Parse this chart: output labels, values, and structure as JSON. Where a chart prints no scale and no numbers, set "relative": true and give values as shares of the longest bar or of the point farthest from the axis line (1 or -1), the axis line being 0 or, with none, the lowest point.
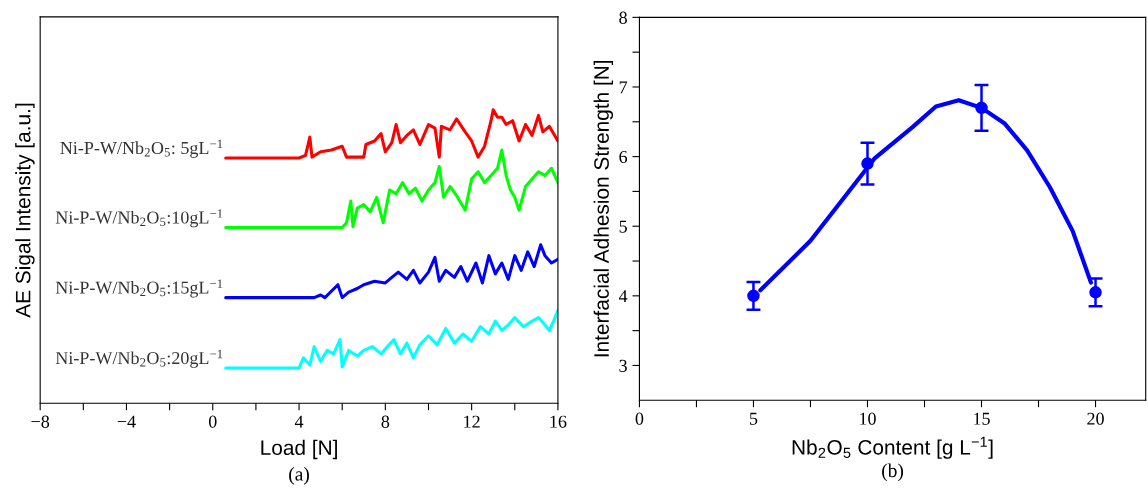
{
  "chart_data": [
    {
      "type": "line",
      "relative": true,
      "xlabel": "Load [N]",
      "ylabel": "AE Sigal Intensity [a.u.]",
      "annotations": [
        "(a)"
      ],
      "tick_labels": "x",
      "grid": false,
      "legend": false,
      "xlim": [
        -8,
        16
      ],
      "xticks": [
        {
          "value": -8,
          "label": "−8"
        },
        {
          "value": -6,
          "label": null
        },
        {
          "value": -4,
          "label": "−4"
        },
        {
          "value": -2,
          "label": null
        },
        0,
        {
          "value": 2,
          "label": null
        },
        4,
        {
          "value": 6,
          "label": null
        },
        8,
        {
          "value": 10,
          "label": null
        },
        12,
        {
          "value": 14,
          "label": null
        },
        16
      ],
      "series": [
        {
          "name": "Ni-P-W/Nb$_{2}$O$_{5}$: 5gL$^{−1}$",
          "color": "#ff0000",
          "x": [
            0.6,
            4.0,
            4.3,
            4.5,
            4.6,
            5.0,
            5.5,
            6.0,
            6.2,
            7.0,
            7.1,
            7.5,
            7.8,
            8.0,
            8.3,
            8.5,
            8.7,
            9.0,
            9.3,
            9.6,
            10.0,
            10.3,
            10.5,
            10.6,
            11.0,
            11.3,
            11.7,
            12.0,
            12.3,
            12.6,
            12.9,
            13.0,
            13.2,
            13.4,
            13.6,
            13.9,
            14.2,
            14.5,
            14.8,
            15.1,
            15.3,
            15.6,
            16.0
          ],
          "values": [
            0.836,
            0.836,
            0.845,
            0.907,
            0.839,
            0.857,
            0.863,
            0.876,
            0.839,
            0.839,
            0.882,
            0.894,
            0.919,
            0.857,
            0.888,
            0.95,
            0.888,
            0.913,
            0.932,
            0.882,
            0.95,
            0.938,
            0.839,
            0.944,
            0.932,
            0.969,
            0.925,
            0.894,
            0.839,
            0.876,
            0.963,
            1.0,
            0.975,
            0.975,
            0.95,
            0.963,
            0.894,
            0.95,
            0.913,
            0.981,
            0.925,
            0.944,
            0.894
          ]
        },
        {
          "name": "Ni-P-W/Nb$_{2}$O$_{5}$:10gL$^{−1}$",
          "color": "#00ff00",
          "x": [
            0.6,
            6.0,
            6.2,
            6.4,
            6.5,
            6.7,
            7.0,
            7.3,
            7.6,
            7.9,
            8.2,
            8.5,
            8.8,
            9.1,
            9.4,
            9.7,
            10.0,
            10.3,
            10.5,
            10.7,
            11.0,
            11.3,
            11.7,
            12.0,
            12.3,
            12.6,
            12.9,
            13.2,
            13.4,
            13.6,
            13.8,
            14.0,
            14.2,
            14.5,
            14.8,
            15.1,
            15.4,
            15.7,
            16.0
          ],
          "values": [
            0.599,
            0.599,
            0.615,
            0.689,
            0.602,
            0.665,
            0.677,
            0.652,
            0.702,
            0.615,
            0.727,
            0.714,
            0.752,
            0.714,
            0.733,
            0.689,
            0.727,
            0.752,
            0.807,
            0.702,
            0.739,
            0.708,
            0.658,
            0.764,
            0.789,
            0.752,
            0.776,
            0.801,
            0.863,
            0.776,
            0.727,
            0.702,
            0.658,
            0.739,
            0.764,
            0.789,
            0.776,
            0.801,
            0.752
          ]
        },
        {
          "name": "Ni-P-W/Nb$_{2}$O$_{5}$:15gL$^{−1}$",
          "color": "#0000ff",
          "x": [
            0.6,
            4.7,
            5.0,
            5.2,
            5.8,
            6.0,
            6.3,
            6.7,
            7.0,
            7.5,
            8.0,
            8.3,
            8.6,
            9.0,
            9.3,
            9.6,
            10.0,
            10.3,
            10.5,
            10.8,
            11.2,
            11.5,
            11.8,
            12.2,
            12.5,
            12.8,
            13.1,
            13.4,
            13.7,
            14.0,
            14.3,
            14.6,
            14.9,
            15.2,
            15.4,
            15.7,
            16.0
          ],
          "values": [
            0.36,
            0.36,
            0.369,
            0.36,
            0.404,
            0.36,
            0.379,
            0.391,
            0.404,
            0.416,
            0.41,
            0.429,
            0.447,
            0.422,
            0.453,
            0.41,
            0.447,
            0.497,
            0.416,
            0.453,
            0.429,
            0.466,
            0.416,
            0.478,
            0.41,
            0.503,
            0.441,
            0.478,
            0.422,
            0.503,
            0.453,
            0.516,
            0.466,
            0.54,
            0.503,
            0.478,
            0.491
          ]
        },
        {
          "name": "Ni-P-W/Nb$_{2}$O$_{5}$:20gL$^{−1}$",
          "color": "#00ffff",
          "x": [
            0.6,
            4.0,
            4.2,
            4.5,
            4.7,
            5.0,
            5.3,
            5.6,
            5.9,
            6.0,
            6.3,
            6.7,
            7.0,
            7.4,
            7.8,
            8.1,
            8.4,
            8.7,
            9.0,
            9.3,
            9.6,
            10.0,
            10.4,
            10.8,
            11.2,
            11.6,
            12.0,
            12.4,
            12.8,
            13.1,
            13.4,
            13.7,
            14.0,
            14.4,
            14.8,
            15.1,
            15.4,
            15.6,
            15.8,
            16.0
          ],
          "values": [
            0.12,
            0.12,
            0.155,
            0.13,
            0.193,
            0.143,
            0.18,
            0.168,
            0.217,
            0.124,
            0.18,
            0.161,
            0.18,
            0.193,
            0.168,
            0.193,
            0.217,
            0.168,
            0.205,
            0.155,
            0.199,
            0.23,
            0.199,
            0.255,
            0.205,
            0.236,
            0.211,
            0.261,
            0.236,
            0.28,
            0.248,
            0.267,
            0.292,
            0.261,
            0.28,
            0.292,
            0.267,
            0.248,
            0.28,
            0.317
          ]
        }
      ]
    },
    {
      "type": "line",
      "xlabel": "Nb$_{2}$O$_{5}$ Content [g L$^{−1}$]",
      "ylabel": "Interfacial Adhesion Strength [N]",
      "annotations": [
        "(b)"
      ],
      "grid": false,
      "legend": false,
      "xlim": [
        0,
        22.2
      ],
      "xticks": [
        0,
        {
          "value": 2.5,
          "label": null
        },
        5,
        {
          "value": 7.5,
          "label": null
        },
        10,
        {
          "value": 12.5,
          "label": null
        },
        15,
        {
          "value": 17.5,
          "label": null
        },
        20
      ],
      "ylim": [
        2.5,
        8
      ],
      "yticks": [
        3,
        {
          "value": 3.5,
          "label": null
        },
        4,
        {
          "value": 4.5,
          "label": null
        },
        5,
        {
          "value": 5.5,
          "label": null
        },
        6,
        {
          "value": 6.5,
          "label": null
        },
        7,
        {
          "value": 7.5,
          "label": null
        },
        8
      ],
      "series": [
        {
          "type": "line",
          "color": "#0000ff",
          "marker": "none",
          "x": [
            5.3,
            7.5,
            10.3,
            12,
            13,
            14,
            15,
            16,
            17,
            18,
            19,
            19.8
          ],
          "values": [
            4.08,
            4.79,
            5.97,
            6.43,
            6.72,
            6.81,
            6.7,
            6.48,
            6.09,
            5.56,
            4.93,
            4.19
          ]
        },
        {
          "type": "scatter",
          "color": "#0000ff",
          "marker": "circle",
          "x": [
            5,
            10,
            15,
            20
          ],
          "values": [
            4.0,
            5.9,
            6.7,
            4.05
          ],
          "errors": [
            0.2,
            0.3,
            0.33,
            0.2
          ]
        }
      ]
    }
  ]
}
